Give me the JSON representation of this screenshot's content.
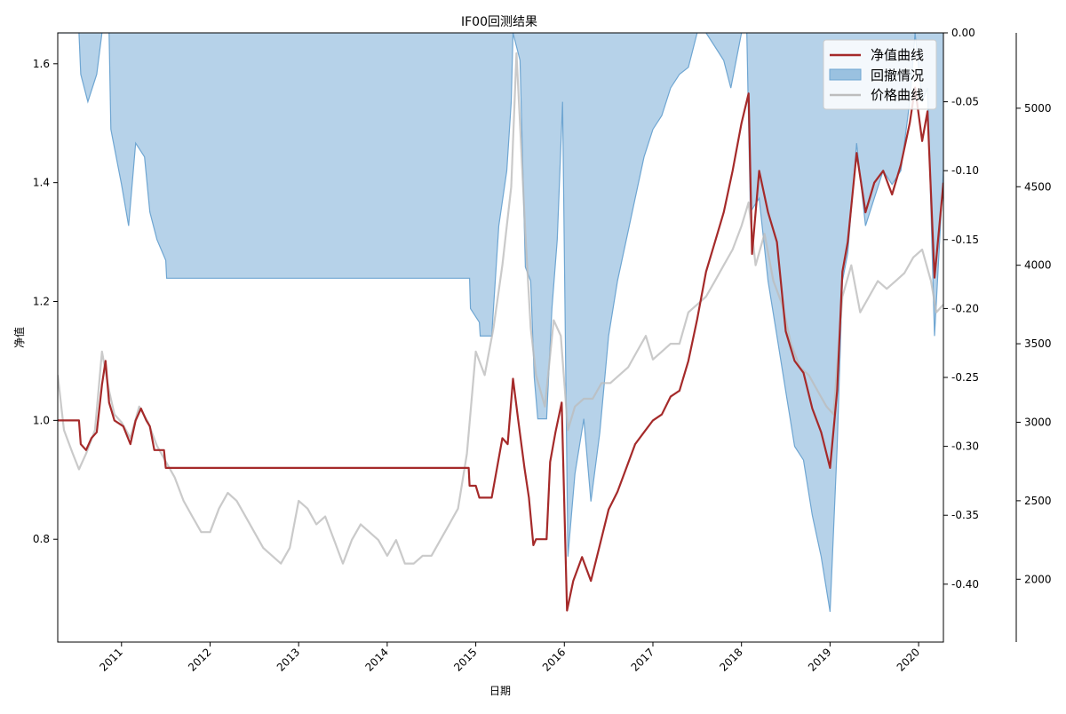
{
  "chart_data": {
    "type": "line",
    "title": "IF00回测结果",
    "xlabel": "日期",
    "ylabel": "净值",
    "x_ticks": [
      "2011",
      "2012",
      "2013",
      "2014",
      "2015",
      "2016",
      "2017",
      "2018",
      "2019",
      "2020"
    ],
    "x_range": [
      2010.28,
      2020.28
    ],
    "axes": {
      "left": {
        "range": [
          0.627,
          1.652
        ],
        "ticks": [
          "0.8",
          "1.0",
          "1.2",
          "1.4",
          "1.6"
        ],
        "label": "净值"
      },
      "right_drawdown": {
        "range": [
          -0.442,
          0.0
        ],
        "ticks": [
          "0.00",
          "-0.05",
          "-0.10",
          "-0.15",
          "-0.20",
          "-0.25",
          "-0.30",
          "-0.35",
          "-0.40"
        ]
      },
      "right_price": {
        "range": [
          1600,
          5480
        ],
        "ticks": [
          "2000",
          "2500",
          "3000",
          "3500",
          "4000",
          "4500",
          "5000"
        ]
      }
    },
    "legend": {
      "position": "top-right",
      "entries": [
        "净值曲线",
        "回撤情况",
        "价格曲线"
      ]
    },
    "colors": {
      "net_value": "#a52a2a",
      "drawdown_fill": "#9ac1e0",
      "drawdown_line": "#6fa6d2",
      "price": "#bdbdbd"
    },
    "series": [
      {
        "name": "净值曲线",
        "axis": "left",
        "points": [
          [
            2010.28,
            1.0
          ],
          [
            2010.52,
            1.0
          ],
          [
            2010.54,
            0.96
          ],
          [
            2010.6,
            0.95
          ],
          [
            2010.66,
            0.97
          ],
          [
            2010.72,
            0.98
          ],
          [
            2010.78,
            1.06
          ],
          [
            2010.82,
            1.1
          ],
          [
            2010.86,
            1.03
          ],
          [
            2010.92,
            1.0
          ],
          [
            2011.02,
            0.99
          ],
          [
            2011.1,
            0.96
          ],
          [
            2011.16,
            1.0
          ],
          [
            2011.22,
            1.02
          ],
          [
            2011.28,
            1.0
          ],
          [
            2011.32,
            0.99
          ],
          [
            2011.37,
            0.95
          ],
          [
            2011.4,
            0.95
          ],
          [
            2011.48,
            0.95
          ],
          [
            2011.5,
            0.92
          ],
          [
            2014.92,
            0.92
          ],
          [
            2014.93,
            0.89
          ],
          [
            2015.0,
            0.89
          ],
          [
            2015.04,
            0.87
          ],
          [
            2015.18,
            0.87
          ],
          [
            2015.24,
            0.92
          ],
          [
            2015.3,
            0.97
          ],
          [
            2015.36,
            0.96
          ],
          [
            2015.42,
            1.07
          ],
          [
            2015.48,
            1.0
          ],
          [
            2015.55,
            0.92
          ],
          [
            2015.6,
            0.87
          ],
          [
            2015.65,
            0.79
          ],
          [
            2015.68,
            0.8
          ],
          [
            2015.8,
            0.8
          ],
          [
            2015.84,
            0.93
          ],
          [
            2015.9,
            0.98
          ],
          [
            2015.97,
            1.03
          ],
          [
            2016.03,
            0.68
          ],
          [
            2016.1,
            0.73
          ],
          [
            2016.2,
            0.77
          ],
          [
            2016.3,
            0.73
          ],
          [
            2016.4,
            0.79
          ],
          [
            2016.5,
            0.85
          ],
          [
            2016.6,
            0.88
          ],
          [
            2016.7,
            0.92
          ],
          [
            2016.8,
            0.96
          ],
          [
            2016.9,
            0.98
          ],
          [
            2017.0,
            1.0
          ],
          [
            2017.1,
            1.01
          ],
          [
            2017.2,
            1.04
          ],
          [
            2017.3,
            1.05
          ],
          [
            2017.4,
            1.1
          ],
          [
            2017.5,
            1.17
          ],
          [
            2017.6,
            1.25
          ],
          [
            2017.7,
            1.3
          ],
          [
            2017.8,
            1.35
          ],
          [
            2017.9,
            1.42
          ],
          [
            2018.0,
            1.5
          ],
          [
            2018.08,
            1.55
          ],
          [
            2018.12,
            1.28
          ],
          [
            2018.2,
            1.42
          ],
          [
            2018.3,
            1.35
          ],
          [
            2018.4,
            1.3
          ],
          [
            2018.5,
            1.15
          ],
          [
            2018.6,
            1.1
          ],
          [
            2018.7,
            1.08
          ],
          [
            2018.8,
            1.02
          ],
          [
            2018.9,
            0.98
          ],
          [
            2019.0,
            0.92
          ],
          [
            2019.08,
            1.05
          ],
          [
            2019.14,
            1.25
          ],
          [
            2019.2,
            1.3
          ],
          [
            2019.3,
            1.45
          ],
          [
            2019.4,
            1.35
          ],
          [
            2019.5,
            1.4
          ],
          [
            2019.6,
            1.42
          ],
          [
            2019.7,
            1.38
          ],
          [
            2019.8,
            1.43
          ],
          [
            2019.9,
            1.5
          ],
          [
            2019.96,
            1.56
          ],
          [
            2020.04,
            1.47
          ],
          [
            2020.1,
            1.52
          ],
          [
            2020.18,
            1.24
          ],
          [
            2020.28,
            1.4
          ]
        ]
      },
      {
        "name": "回撤情况",
        "axis": "right_drawdown",
        "points": [
          [
            2010.28,
            0.0
          ],
          [
            2010.52,
            0.0
          ],
          [
            2010.54,
            -0.03
          ],
          [
            2010.62,
            -0.05
          ],
          [
            2010.72,
            -0.03
          ],
          [
            2010.78,
            0.0
          ],
          [
            2010.86,
            0.0
          ],
          [
            2010.88,
            -0.07
          ],
          [
            2011.0,
            -0.11
          ],
          [
            2011.08,
            -0.14
          ],
          [
            2011.16,
            -0.08
          ],
          [
            2011.26,
            -0.09
          ],
          [
            2011.32,
            -0.13
          ],
          [
            2011.4,
            -0.15
          ],
          [
            2011.5,
            -0.165
          ],
          [
            2011.51,
            -0.178
          ],
          [
            2014.93,
            -0.178
          ],
          [
            2014.94,
            -0.2
          ],
          [
            2015.04,
            -0.21
          ],
          [
            2015.05,
            -0.22
          ],
          [
            2015.18,
            -0.22
          ],
          [
            2015.26,
            -0.14
          ],
          [
            2015.35,
            -0.1
          ],
          [
            2015.4,
            -0.05
          ],
          [
            2015.42,
            0.0
          ],
          [
            2015.5,
            -0.02
          ],
          [
            2015.56,
            -0.17
          ],
          [
            2015.62,
            -0.18
          ],
          [
            2015.66,
            -0.25
          ],
          [
            2015.7,
            -0.28
          ],
          [
            2015.8,
            -0.28
          ],
          [
            2015.86,
            -0.2
          ],
          [
            2015.92,
            -0.15
          ],
          [
            2015.98,
            -0.05
          ],
          [
            2016.04,
            -0.38
          ],
          [
            2016.12,
            -0.32
          ],
          [
            2016.22,
            -0.28
          ],
          [
            2016.3,
            -0.34
          ],
          [
            2016.4,
            -0.29
          ],
          [
            2016.5,
            -0.22
          ],
          [
            2016.6,
            -0.18
          ],
          [
            2016.7,
            -0.15
          ],
          [
            2016.8,
            -0.12
          ],
          [
            2016.9,
            -0.09
          ],
          [
            2017.0,
            -0.07
          ],
          [
            2017.1,
            -0.06
          ],
          [
            2017.2,
            -0.04
          ],
          [
            2017.3,
            -0.03
          ],
          [
            2017.4,
            -0.025
          ],
          [
            2017.5,
            0.0
          ],
          [
            2017.6,
            0.0
          ],
          [
            2017.7,
            -0.01
          ],
          [
            2017.8,
            -0.02
          ],
          [
            2017.88,
            -0.04
          ],
          [
            2018.0,
            0.0
          ],
          [
            2018.06,
            0.0
          ],
          [
            2018.1,
            -0.13
          ],
          [
            2018.2,
            -0.12
          ],
          [
            2018.3,
            -0.18
          ],
          [
            2018.4,
            -0.22
          ],
          [
            2018.5,
            -0.26
          ],
          [
            2018.6,
            -0.3
          ],
          [
            2018.7,
            -0.31
          ],
          [
            2018.8,
            -0.35
          ],
          [
            2018.9,
            -0.38
          ],
          [
            2019.0,
            -0.42
          ],
          [
            2019.08,
            -0.3
          ],
          [
            2019.14,
            -0.18
          ],
          [
            2019.2,
            -0.16
          ],
          [
            2019.3,
            -0.08
          ],
          [
            2019.4,
            -0.14
          ],
          [
            2019.5,
            -0.12
          ],
          [
            2019.6,
            -0.1
          ],
          [
            2019.7,
            -0.11
          ],
          [
            2019.8,
            -0.1
          ],
          [
            2019.9,
            -0.05
          ],
          [
            2019.96,
            0.0
          ],
          [
            2020.04,
            -0.05
          ],
          [
            2020.1,
            -0.04
          ],
          [
            2020.18,
            -0.22
          ],
          [
            2020.28,
            -0.1
          ]
        ]
      },
      {
        "name": "价格曲线",
        "axis": "right_price",
        "points": [
          [
            2010.28,
            3300
          ],
          [
            2010.35,
            2950
          ],
          [
            2010.45,
            2800
          ],
          [
            2010.52,
            2700
          ],
          [
            2010.6,
            2800
          ],
          [
            2010.7,
            2950
          ],
          [
            2010.78,
            3450
          ],
          [
            2010.86,
            3200
          ],
          [
            2010.92,
            3050
          ],
          [
            2011.0,
            3000
          ],
          [
            2011.1,
            2900
          ],
          [
            2011.2,
            3100
          ],
          [
            2011.3,
            3000
          ],
          [
            2011.4,
            2850
          ],
          [
            2011.5,
            2750
          ],
          [
            2011.6,
            2650
          ],
          [
            2011.7,
            2500
          ],
          [
            2011.8,
            2400
          ],
          [
            2011.9,
            2300
          ],
          [
            2012.0,
            2300
          ],
          [
            2012.1,
            2450
          ],
          [
            2012.2,
            2550
          ],
          [
            2012.3,
            2500
          ],
          [
            2012.4,
            2400
          ],
          [
            2012.5,
            2300
          ],
          [
            2012.6,
            2200
          ],
          [
            2012.7,
            2150
          ],
          [
            2012.8,
            2100
          ],
          [
            2012.9,
            2200
          ],
          [
            2013.0,
            2500
          ],
          [
            2013.1,
            2450
          ],
          [
            2013.2,
            2350
          ],
          [
            2013.3,
            2400
          ],
          [
            2013.4,
            2250
          ],
          [
            2013.5,
            2100
          ],
          [
            2013.6,
            2250
          ],
          [
            2013.7,
            2350
          ],
          [
            2013.8,
            2300
          ],
          [
            2013.9,
            2250
          ],
          [
            2014.0,
            2150
          ],
          [
            2014.1,
            2250
          ],
          [
            2014.2,
            2100
          ],
          [
            2014.3,
            2100
          ],
          [
            2014.4,
            2150
          ],
          [
            2014.5,
            2150
          ],
          [
            2014.6,
            2250
          ],
          [
            2014.7,
            2350
          ],
          [
            2014.8,
            2450
          ],
          [
            2014.9,
            2800
          ],
          [
            2015.0,
            3450
          ],
          [
            2015.1,
            3300
          ],
          [
            2015.2,
            3600
          ],
          [
            2015.3,
            4000
          ],
          [
            2015.4,
            4500
          ],
          [
            2015.46,
            5350
          ],
          [
            2015.5,
            4900
          ],
          [
            2015.56,
            4200
          ],
          [
            2015.62,
            3600
          ],
          [
            2015.68,
            3300
          ],
          [
            2015.78,
            3100
          ],
          [
            2015.88,
            3650
          ],
          [
            2015.96,
            3550
          ],
          [
            2016.04,
            2950
          ],
          [
            2016.12,
            3100
          ],
          [
            2016.22,
            3150
          ],
          [
            2016.32,
            3150
          ],
          [
            2016.42,
            3250
          ],
          [
            2016.52,
            3250
          ],
          [
            2016.62,
            3300
          ],
          [
            2016.72,
            3350
          ],
          [
            2016.82,
            3450
          ],
          [
            2016.92,
            3550
          ],
          [
            2017.0,
            3400
          ],
          [
            2017.1,
            3450
          ],
          [
            2017.2,
            3500
          ],
          [
            2017.3,
            3500
          ],
          [
            2017.4,
            3700
          ],
          [
            2017.5,
            3750
          ],
          [
            2017.6,
            3800
          ],
          [
            2017.7,
            3900
          ],
          [
            2017.8,
            4000
          ],
          [
            2017.9,
            4100
          ],
          [
            2018.0,
            4250
          ],
          [
            2018.08,
            4400
          ],
          [
            2018.16,
            4000
          ],
          [
            2018.26,
            4200
          ],
          [
            2018.36,
            3900
          ],
          [
            2018.46,
            3750
          ],
          [
            2018.56,
            3500
          ],
          [
            2018.66,
            3350
          ],
          [
            2018.76,
            3300
          ],
          [
            2018.86,
            3200
          ],
          [
            2018.96,
            3100
          ],
          [
            2019.04,
            3050
          ],
          [
            2019.14,
            3800
          ],
          [
            2019.24,
            4000
          ],
          [
            2019.34,
            3700
          ],
          [
            2019.44,
            3800
          ],
          [
            2019.54,
            3900
          ],
          [
            2019.64,
            3850
          ],
          [
            2019.74,
            3900
          ],
          [
            2019.84,
            3950
          ],
          [
            2019.94,
            4050
          ],
          [
            2020.04,
            4100
          ],
          [
            2020.14,
            3900
          ],
          [
            2020.2,
            3700
          ],
          [
            2020.28,
            3750
          ]
        ]
      }
    ]
  }
}
